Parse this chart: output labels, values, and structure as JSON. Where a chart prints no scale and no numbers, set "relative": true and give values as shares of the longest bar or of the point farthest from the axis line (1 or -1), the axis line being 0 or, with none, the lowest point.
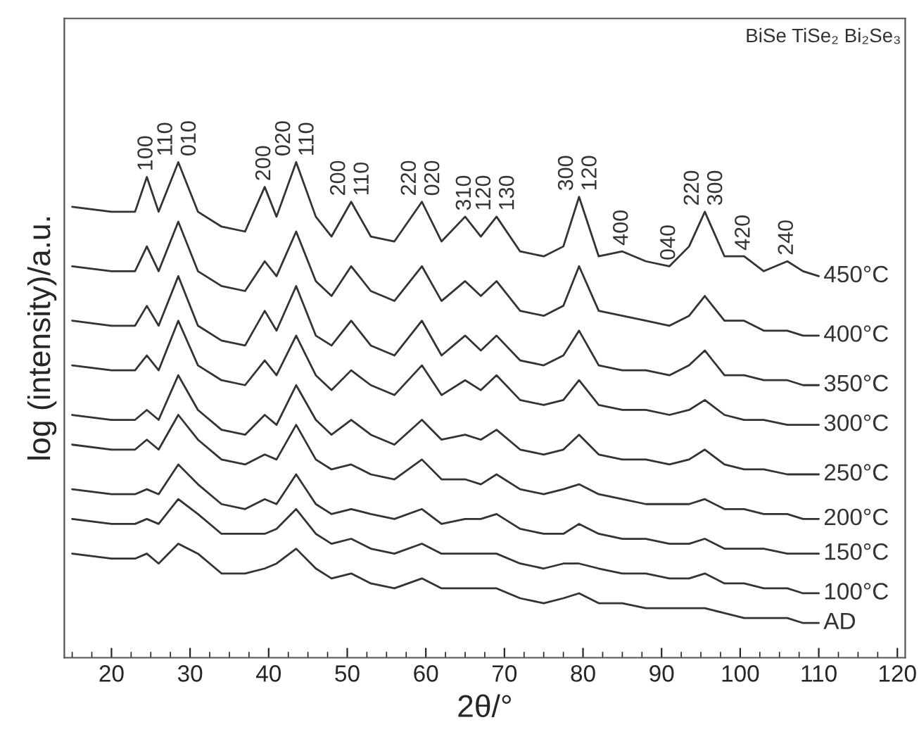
{
  "chart_data": {
    "type": "line",
    "relative": true,
    "xlabel": "2θ/°",
    "ylabel": "log (intensity)/a.u.",
    "xlim": [
      14,
      121
    ],
    "xticks": [
      20,
      30,
      40,
      50,
      60,
      70,
      80,
      90,
      100,
      110,
      120
    ],
    "legend": false,
    "grid": false,
    "marker": "none",
    "line_style": "solid",
    "x": [
      15,
      20,
      23,
      24.5,
      26,
      28.5,
      31,
      34,
      37,
      39.5,
      41,
      43.5,
      46,
      48,
      50.5,
      53,
      56,
      59.5,
      62,
      65,
      67,
      69,
      72,
      75,
      77.5,
      79.5,
      82,
      85,
      88,
      91,
      93.5,
      95.5,
      98,
      100.5,
      103,
      106,
      108,
      110
    ],
    "series": [
      {
        "name": "450°C",
        "color": "#333333",
        "values": [
          0.91,
          0.9,
          0.9,
          0.97,
          0.9,
          1.0,
          0.9,
          0.87,
          0.86,
          0.95,
          0.89,
          1.0,
          0.89,
          0.85,
          0.92,
          0.85,
          0.84,
          0.92,
          0.84,
          0.89,
          0.85,
          0.89,
          0.82,
          0.81,
          0.83,
          0.93,
          0.81,
          0.82,
          0.8,
          0.79,
          0.83,
          0.9,
          0.81,
          0.81,
          0.78,
          0.8,
          0.78,
          0.77
        ]
      },
      {
        "name": "400°C",
        "color": "#333333",
        "values": [
          0.79,
          0.78,
          0.78,
          0.83,
          0.78,
          0.88,
          0.78,
          0.75,
          0.74,
          0.8,
          0.77,
          0.86,
          0.76,
          0.73,
          0.79,
          0.74,
          0.72,
          0.79,
          0.72,
          0.76,
          0.73,
          0.76,
          0.7,
          0.69,
          0.71,
          0.79,
          0.7,
          0.69,
          0.68,
          0.67,
          0.69,
          0.73,
          0.68,
          0.68,
          0.66,
          0.66,
          0.65,
          0.65
        ]
      },
      {
        "name": "350°C",
        "color": "#333333",
        "values": [
          0.68,
          0.67,
          0.67,
          0.71,
          0.67,
          0.77,
          0.67,
          0.64,
          0.63,
          0.7,
          0.66,
          0.75,
          0.65,
          0.63,
          0.68,
          0.63,
          0.61,
          0.68,
          0.61,
          0.65,
          0.62,
          0.65,
          0.6,
          0.59,
          0.61,
          0.66,
          0.59,
          0.58,
          0.58,
          0.57,
          0.59,
          0.62,
          0.57,
          0.57,
          0.56,
          0.56,
          0.55,
          0.55
        ]
      },
      {
        "name": "300°C",
        "color": "#333333",
        "values": [
          0.59,
          0.58,
          0.58,
          0.61,
          0.58,
          0.68,
          0.59,
          0.56,
          0.55,
          0.6,
          0.57,
          0.65,
          0.57,
          0.54,
          0.58,
          0.55,
          0.53,
          0.59,
          0.53,
          0.56,
          0.54,
          0.57,
          0.52,
          0.51,
          0.52,
          0.56,
          0.51,
          0.5,
          0.5,
          0.49,
          0.5,
          0.52,
          0.49,
          0.48,
          0.48,
          0.47,
          0.47,
          0.47
        ]
      },
      {
        "name": "250°C",
        "color": "#333333",
        "values": [
          0.49,
          0.48,
          0.48,
          0.5,
          0.48,
          0.57,
          0.5,
          0.46,
          0.45,
          0.49,
          0.47,
          0.55,
          0.48,
          0.45,
          0.48,
          0.45,
          0.43,
          0.48,
          0.44,
          0.45,
          0.44,
          0.46,
          0.42,
          0.41,
          0.42,
          0.45,
          0.41,
          0.4,
          0.4,
          0.39,
          0.4,
          0.42,
          0.39,
          0.38,
          0.38,
          0.37,
          0.37,
          0.37
        ]
      },
      {
        "name": "200°C",
        "color": "#333333",
        "values": [
          0.43,
          0.42,
          0.42,
          0.44,
          0.42,
          0.49,
          0.44,
          0.4,
          0.39,
          0.41,
          0.4,
          0.47,
          0.4,
          0.38,
          0.39,
          0.37,
          0.36,
          0.4,
          0.36,
          0.36,
          0.35,
          0.37,
          0.34,
          0.33,
          0.34,
          0.35,
          0.33,
          0.32,
          0.31,
          0.31,
          0.31,
          0.32,
          0.3,
          0.3,
          0.29,
          0.29,
          0.28,
          0.28
        ]
      },
      {
        "name": "150°C",
        "color": "#333333",
        "values": [
          0.34,
          0.33,
          0.33,
          0.34,
          0.33,
          0.39,
          0.35,
          0.31,
          0.3,
          0.32,
          0.31,
          0.37,
          0.31,
          0.29,
          0.3,
          0.29,
          0.28,
          0.3,
          0.27,
          0.28,
          0.28,
          0.29,
          0.26,
          0.25,
          0.25,
          0.27,
          0.25,
          0.24,
          0.24,
          0.23,
          0.23,
          0.24,
          0.22,
          0.22,
          0.22,
          0.21,
          0.21,
          0.21
        ]
      },
      {
        "name": "100°C",
        "color": "#333333",
        "values": [
          0.28,
          0.27,
          0.27,
          0.28,
          0.27,
          0.32,
          0.29,
          0.25,
          0.25,
          0.25,
          0.26,
          0.3,
          0.25,
          0.23,
          0.24,
          0.22,
          0.21,
          0.23,
          0.21,
          0.21,
          0.21,
          0.21,
          0.19,
          0.18,
          0.19,
          0.19,
          0.18,
          0.17,
          0.17,
          0.16,
          0.16,
          0.17,
          0.15,
          0.15,
          0.14,
          0.14,
          0.13,
          0.13
        ]
      },
      {
        "name": "AD",
        "color": "#333333",
        "values": [
          0.21,
          0.2,
          0.2,
          0.21,
          0.19,
          0.23,
          0.21,
          0.17,
          0.17,
          0.18,
          0.19,
          0.22,
          0.18,
          0.16,
          0.17,
          0.15,
          0.14,
          0.16,
          0.14,
          0.14,
          0.14,
          0.14,
          0.12,
          0.11,
          0.12,
          0.13,
          0.11,
          0.11,
          0.1,
          0.1,
          0.1,
          0.1,
          0.09,
          0.08,
          0.08,
          0.08,
          0.07,
          0.07
        ]
      }
    ],
    "annotations": [
      "BiSe TiSe₂ Bi₂Se₃",
      {
        "text": "100",
        "x": 24.5,
        "y": 0.97
      },
      {
        "text": "110",
        "x": 28.5,
        "y": 1.0
      },
      {
        "text": "010",
        "x": 28.5,
        "y": 1.0
      },
      {
        "text": "200",
        "x": 39.5,
        "y": 0.95
      },
      {
        "text": "020",
        "x": 43.5,
        "y": 1.0
      },
      {
        "text": "110",
        "x": 43.5,
        "y": 1.0
      },
      {
        "text": "200",
        "x": 50.5,
        "y": 0.92
      },
      {
        "text": "110",
        "x": 50.5,
        "y": 0.92
      },
      {
        "text": "220",
        "x": 59.5,
        "y": 0.92
      },
      {
        "text": "020",
        "x": 59.5,
        "y": 0.92
      },
      {
        "text": "310",
        "x": 65,
        "y": 0.89
      },
      {
        "text": "120",
        "x": 69,
        "y": 0.89
      },
      {
        "text": "130",
        "x": 69,
        "y": 0.89
      },
      {
        "text": "300",
        "x": 79.5,
        "y": 0.93
      },
      {
        "text": "120",
        "x": 79.5,
        "y": 0.93
      },
      {
        "text": "400",
        "x": 85,
        "y": 0.82
      },
      {
        "text": "040",
        "x": 91,
        "y": 0.79
      },
      {
        "text": "220",
        "x": 95.5,
        "y": 0.9
      },
      {
        "text": "300",
        "x": 95.5,
        "y": 0.9
      },
      {
        "text": "420",
        "x": 100.5,
        "y": 0.81
      },
      {
        "text": "240",
        "x": 106,
        "y": 0.8
      }
    ]
  }
}
